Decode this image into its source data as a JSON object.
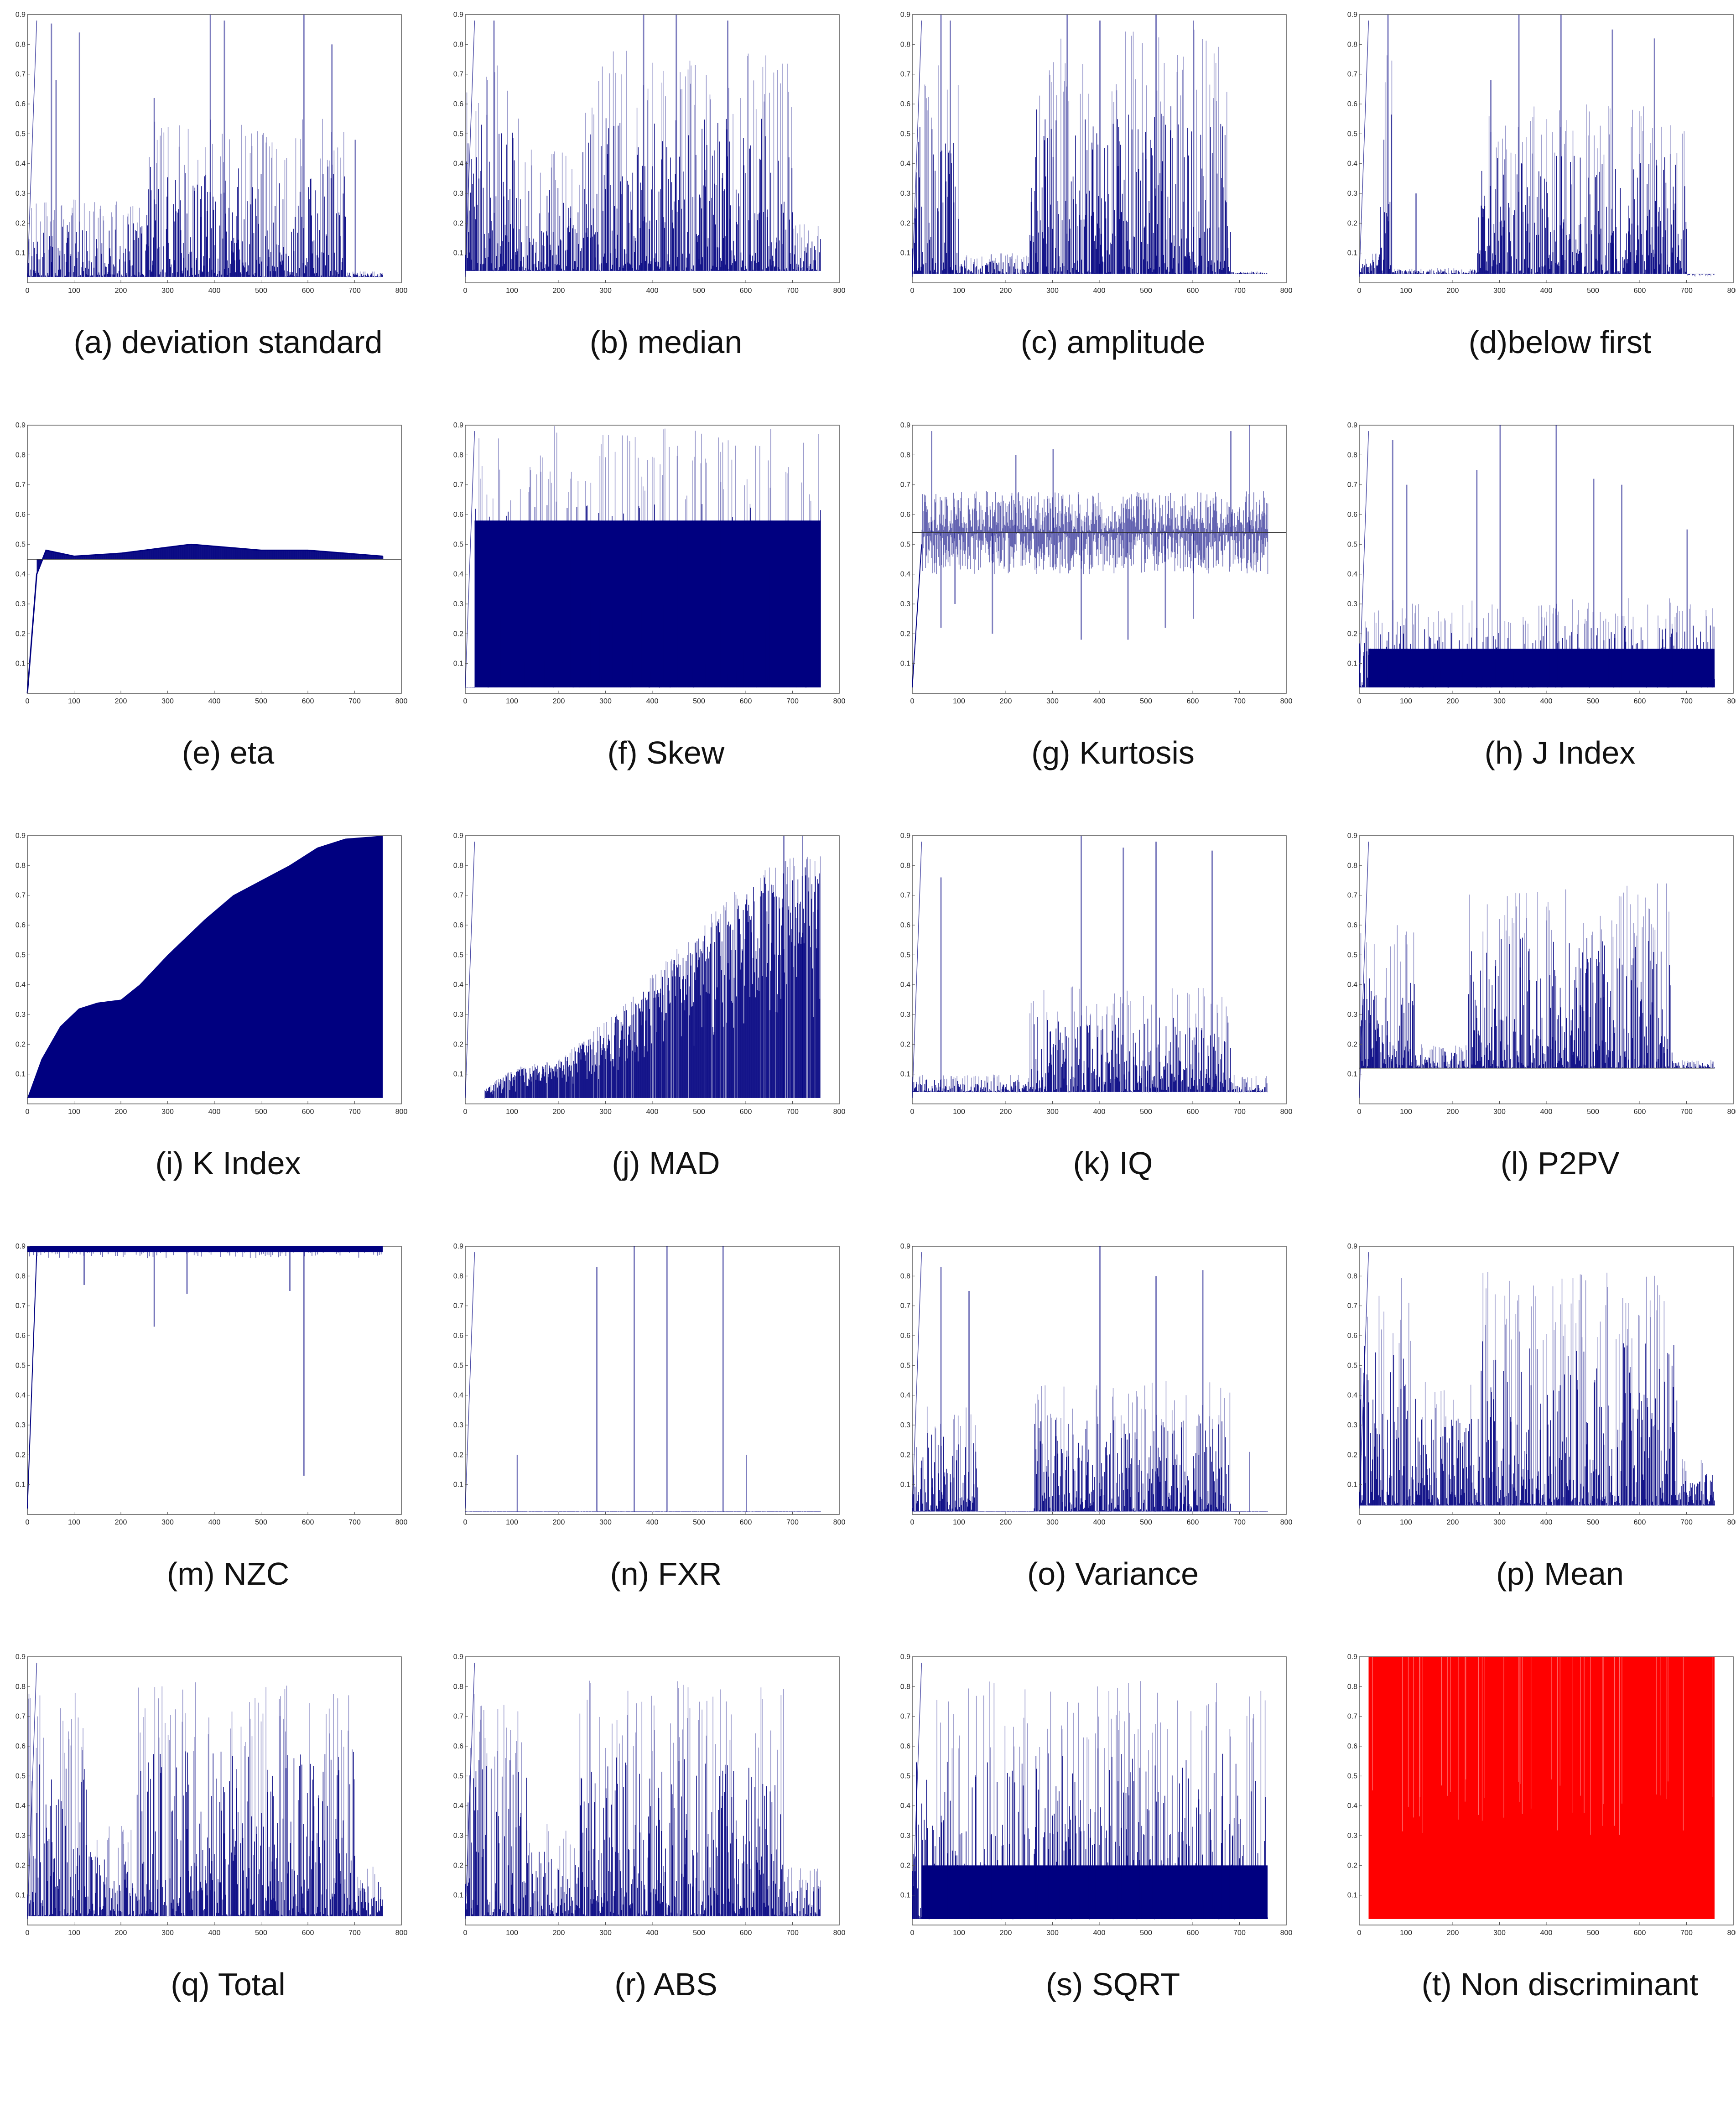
{
  "colors": {
    "series": "#000080",
    "red_series": "#ff0000",
    "axis": "#555555"
  },
  "axes": {
    "x_ticks": [
      0,
      100,
      200,
      300,
      400,
      500,
      600,
      700,
      800
    ],
    "y_ticks": [
      0.1,
      0.2,
      0.3,
      0.4,
      0.5,
      0.6,
      0.7,
      0.8,
      0.9
    ],
    "xlim": [
      0,
      800
    ],
    "ylim": [
      0,
      0.9
    ]
  },
  "panels": [
    {
      "caption": "(a) deviation standard"
    },
    {
      "caption": "(b) median"
    },
    {
      "caption": "(c) amplitude"
    },
    {
      "caption": "(d)below first"
    },
    {
      "caption": "(e) eta"
    },
    {
      "caption": "(f) Skew"
    },
    {
      "caption": "(g) Kurtosis"
    },
    {
      "caption": "(h) J Index"
    },
    {
      "caption": "(i) K Index"
    },
    {
      "caption": "(j) MAD"
    },
    {
      "caption": "(k) IQ"
    },
    {
      "caption": "(l) P2PV"
    },
    {
      "caption": "(m) NZC"
    },
    {
      "caption": "(n) FXR"
    },
    {
      "caption": "(o) Variance"
    },
    {
      "caption": "(p) Mean"
    },
    {
      "caption": "(q) Total"
    },
    {
      "caption": "(r) ABS"
    },
    {
      "caption": "(s) SQRT"
    },
    {
      "caption": "(t) Non discriminant"
    }
  ],
  "chart_data": [
    {
      "type": "bar",
      "title": "(a) deviation standard",
      "x_range": [
        0,
        760
      ],
      "base": 0.02,
      "segments": [
        [
          [
            0,
            250
          ],
          0.28
        ],
        [
          [
            250,
            680
          ],
          0.55
        ],
        [
          [
            680,
            760
          ],
          0.04
        ]
      ],
      "peaks": [
        [
          50,
          0.87
        ],
        [
          60,
          0.68
        ],
        [
          110,
          0.84
        ],
        [
          270,
          0.62
        ],
        [
          390,
          0.9
        ],
        [
          420,
          0.88
        ],
        [
          590,
          0.9
        ],
        [
          650,
          0.8
        ],
        [
          700,
          0.48
        ]
      ],
      "xlim": [
        0,
        800
      ],
      "ylim": [
        0,
        0.9
      ]
    },
    {
      "type": "bar",
      "title": "(b) median",
      "x_range": [
        0,
        760
      ],
      "base": 0.04,
      "segments": [
        [
          [
            0,
            120
          ],
          0.75
        ],
        [
          [
            120,
            250
          ],
          0.45
        ],
        [
          [
            250,
            700
          ],
          0.78
        ],
        [
          [
            700,
            760
          ],
          0.2
        ]
      ],
      "peaks": [
        [
          60,
          0.88
        ],
        [
          380,
          0.9
        ],
        [
          450,
          0.9
        ],
        [
          560,
          0.88
        ]
      ],
      "xlim": [
        0,
        800
      ],
      "ylim": [
        0,
        0.9
      ]
    },
    {
      "type": "bar",
      "title": "(c) amplitude",
      "x_range": [
        0,
        760
      ],
      "base": 0.03,
      "segments": [
        [
          [
            0,
            100
          ],
          0.75
        ],
        [
          [
            100,
            250
          ],
          0.1
        ],
        [
          [
            250,
            680
          ],
          0.85
        ],
        [
          [
            680,
            760
          ],
          0.04
        ]
      ],
      "peaks": [
        [
          60,
          0.9
        ],
        [
          80,
          0.88
        ],
        [
          330,
          0.9
        ],
        [
          400,
          0.88
        ],
        [
          520,
          0.9
        ],
        [
          600,
          0.88
        ]
      ],
      "xlim": [
        0,
        800
      ],
      "ylim": [
        0,
        0.9
      ]
    },
    {
      "type": "bar",
      "title": "(d)below first",
      "x_range": [
        0,
        760
      ],
      "base": 0.03,
      "segments": [
        [
          [
            0,
            40
          ],
          0.1
        ],
        [
          [
            40,
            70
          ],
          0.8
        ],
        [
          [
            70,
            250
          ],
          0.05
        ],
        [
          [
            250,
            700
          ],
          0.6
        ],
        [
          [
            700,
            760
          ],
          0.02
        ]
      ],
      "peaks": [
        [
          60,
          0.9
        ],
        [
          120,
          0.3
        ],
        [
          280,
          0.68
        ],
        [
          340,
          0.9
        ],
        [
          430,
          0.9
        ],
        [
          540,
          0.85
        ],
        [
          630,
          0.82
        ]
      ],
      "xlim": [
        0,
        800
      ],
      "ylim": [
        0,
        0.9
      ]
    },
    {
      "type": "line",
      "title": "(e) eta",
      "x_range": [
        0,
        760
      ],
      "hline": 0.45,
      "curve": [
        [
          0,
          0
        ],
        [
          20,
          0.4
        ],
        [
          40,
          0.48
        ],
        [
          100,
          0.46
        ],
        [
          200,
          0.47
        ],
        [
          350,
          0.5
        ],
        [
          500,
          0.48
        ],
        [
          600,
          0.48
        ],
        [
          760,
          0.46
        ]
      ],
      "xlim": [
        0,
        800
      ],
      "ylim": [
        0,
        0.9
      ]
    },
    {
      "type": "bar",
      "title": "(f) Skew",
      "x_range": [
        0,
        760
      ],
      "base": 0.02,
      "floor": 0.58,
      "segments": [
        [
          [
            20,
            760
          ],
          0.9
        ]
      ],
      "xlim": [
        0,
        800
      ],
      "ylim": [
        0,
        0.9
      ]
    },
    {
      "type": "line",
      "title": "(g) Kurtosis",
      "x_range": [
        0,
        760
      ],
      "hline": 0.54,
      "band": [
        0.4,
        0.68
      ],
      "dips": [
        [
          60,
          0.22
        ],
        [
          90,
          0.3
        ],
        [
          170,
          0.2
        ],
        [
          360,
          0.18
        ],
        [
          460,
          0.18
        ],
        [
          540,
          0.22
        ],
        [
          600,
          0.25
        ]
      ],
      "spikes": [
        [
          40,
          0.88
        ],
        [
          220,
          0.8
        ],
        [
          300,
          0.82
        ],
        [
          680,
          0.88
        ],
        [
          720,
          0.9
        ]
      ],
      "xlim": [
        0,
        800
      ],
      "ylim": [
        0,
        0.9
      ]
    },
    {
      "type": "bar",
      "title": "(h) J Index",
      "x_range": [
        0,
        760
      ],
      "base": 0.02,
      "floor": 0.15,
      "segments": [
        [
          [
            0,
            760
          ],
          0.32
        ]
      ],
      "peaks": [
        [
          70,
          0.85
        ],
        [
          100,
          0.7
        ],
        [
          250,
          0.75
        ],
        [
          300,
          0.9
        ],
        [
          420,
          0.9
        ],
        [
          500,
          0.72
        ],
        [
          560,
          0.7
        ],
        [
          700,
          0.55
        ]
      ],
      "xlim": [
        0,
        800
      ],
      "ylim": [
        0,
        0.9
      ]
    },
    {
      "type": "area",
      "title": "(i) K Index",
      "x_range": [
        0,
        760
      ],
      "curve": [
        [
          0,
          0.02
        ],
        [
          30,
          0.15
        ],
        [
          70,
          0.26
        ],
        [
          110,
          0.32
        ],
        [
          150,
          0.34
        ],
        [
          200,
          0.35
        ],
        [
          240,
          0.4
        ],
        [
          300,
          0.5
        ],
        [
          380,
          0.62
        ],
        [
          440,
          0.7
        ],
        [
          500,
          0.75
        ],
        [
          560,
          0.8
        ],
        [
          620,
          0.86
        ],
        [
          680,
          0.89
        ],
        [
          760,
          0.9
        ]
      ],
      "xlim": [
        0,
        800
      ],
      "ylim": [
        0,
        0.9
      ]
    },
    {
      "type": "bar",
      "title": "(j) MAD",
      "x_range": [
        40,
        760
      ],
      "base": 0.02,
      "ramp": [
        [
          40,
          0.05
        ],
        [
          100,
          0.12
        ],
        [
          200,
          0.15
        ],
        [
          350,
          0.35
        ],
        [
          500,
          0.6
        ],
        [
          650,
          0.82
        ],
        [
          760,
          0.85
        ]
      ],
      "peaks": [
        [
          680,
          0.9
        ],
        [
          720,
          0.9
        ]
      ],
      "xlim": [
        0,
        800
      ],
      "ylim": [
        0,
        0.9
      ]
    },
    {
      "type": "bar",
      "title": "(k) IQ",
      "x_range": [
        0,
        760
      ],
      "base": 0.04,
      "segments": [
        [
          [
            0,
            250
          ],
          0.1
        ],
        [
          [
            250,
            680
          ],
          0.4
        ],
        [
          [
            680,
            760
          ],
          0.1
        ]
      ],
      "peaks": [
        [
          60,
          0.76
        ],
        [
          360,
          0.9
        ],
        [
          450,
          0.86
        ],
        [
          520,
          0.88
        ],
        [
          640,
          0.85
        ]
      ],
      "xlim": [
        0,
        800
      ],
      "ylim": [
        0,
        0.9
      ]
    },
    {
      "type": "bar",
      "title": "(l) P2PV",
      "x_range": [
        0,
        760
      ],
      "base": 0.12,
      "hline": 0.12,
      "segments": [
        [
          [
            0,
            120
          ],
          0.6
        ],
        [
          [
            120,
            230
          ],
          0.2
        ],
        [
          [
            230,
            670
          ],
          0.75
        ],
        [
          [
            670,
            760
          ],
          0.15
        ]
      ],
      "xlim": [
        0,
        800
      ],
      "ylim": [
        0,
        0.9
      ]
    },
    {
      "type": "bar",
      "title": "(m) NZC",
      "x_range": [
        0,
        760
      ],
      "top": 0.88,
      "dips": [
        [
          120,
          0.77
        ],
        [
          270,
          0.63
        ],
        [
          340,
          0.74
        ],
        [
          560,
          0.75
        ],
        [
          590,
          0.13
        ]
      ],
      "xlim": [
        0,
        800
      ],
      "ylim": [
        0,
        0.9
      ]
    },
    {
      "type": "bar",
      "title": "(n) FXR",
      "x_range": [
        0,
        760
      ],
      "base": 0.01,
      "peaks": [
        [
          110,
          0.2
        ],
        [
          280,
          0.83
        ],
        [
          360,
          0.9
        ],
        [
          430,
          0.9
        ],
        [
          550,
          0.9
        ],
        [
          600,
          0.2
        ]
      ],
      "xlim": [
        0,
        800
      ],
      "ylim": [
        0,
        0.9
      ]
    },
    {
      "type": "bar",
      "title": "(o) Variance",
      "x_range": [
        0,
        760
      ],
      "base": 0.01,
      "segments": [
        [
          [
            0,
            140
          ],
          0.4
        ],
        [
          [
            260,
            680
          ],
          0.45
        ]
      ],
      "peaks": [
        [
          60,
          0.83
        ],
        [
          120,
          0.75
        ],
        [
          400,
          0.9
        ],
        [
          520,
          0.8
        ],
        [
          620,
          0.82
        ],
        [
          720,
          0.21
        ]
      ],
      "xlim": [
        0,
        800
      ],
      "ylim": [
        0,
        0.9
      ]
    },
    {
      "type": "bar",
      "title": "(p) Mean",
      "x_range": [
        0,
        760
      ],
      "base": 0.03,
      "segments": [
        [
          [
            0,
            120
          ],
          0.8
        ],
        [
          [
            120,
            240
          ],
          0.45
        ],
        [
          [
            240,
            680
          ],
          0.82
        ],
        [
          [
            680,
            760
          ],
          0.2
        ]
      ],
      "xlim": [
        0,
        800
      ],
      "ylim": [
        0,
        0.9
      ]
    },
    {
      "type": "bar",
      "title": "(q) Total",
      "x_range": [
        0,
        760
      ],
      "base": 0.03,
      "segments": [
        [
          [
            0,
            130
          ],
          0.78
        ],
        [
          [
            130,
            230
          ],
          0.35
        ],
        [
          [
            230,
            700
          ],
          0.82
        ],
        [
          [
            700,
            760
          ],
          0.2
        ]
      ],
      "xlim": [
        0,
        800
      ],
      "ylim": [
        0,
        0.9
      ]
    },
    {
      "type": "bar",
      "title": "(r) ABS",
      "x_range": [
        0,
        760
      ],
      "base": 0.03,
      "segments": [
        [
          [
            0,
            130
          ],
          0.78
        ],
        [
          [
            130,
            240
          ],
          0.35
        ],
        [
          [
            240,
            680
          ],
          0.82
        ],
        [
          [
            680,
            760
          ],
          0.2
        ]
      ],
      "xlim": [
        0,
        800
      ],
      "ylim": [
        0,
        0.9
      ]
    },
    {
      "type": "bar",
      "title": "(s) SQRT",
      "x_range": [
        0,
        760
      ],
      "base": 0.02,
      "floor": 0.2,
      "segments": [
        [
          [
            0,
            760
          ],
          0.82
        ]
      ],
      "xlim": [
        0,
        800
      ],
      "ylim": [
        0,
        0.9
      ]
    },
    {
      "type": "bar",
      "title": "(t) Non discriminant",
      "x_range": [
        20,
        760
      ],
      "base": 0.02,
      "fill_to": 0.9,
      "color": "red",
      "xlim": [
        0,
        800
      ],
      "ylim": [
        0,
        0.9
      ]
    }
  ]
}
